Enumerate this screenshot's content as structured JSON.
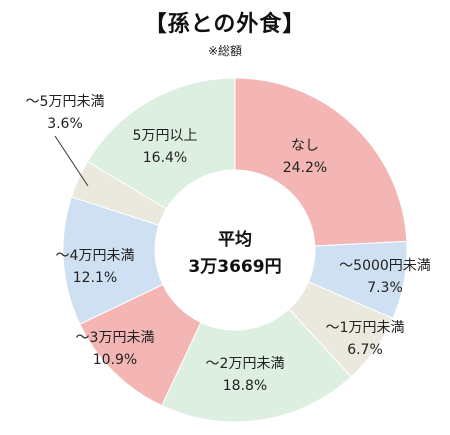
{
  "title": "【孫との外食】",
  "subtitle": "※総額",
  "center": {
    "line1": "平均",
    "line2": "3万3669円"
  },
  "chart_data": {
    "type": "pie",
    "title": "【孫との外食】",
    "subtitle": "※総額",
    "slices": [
      {
        "label": "なし",
        "value": 24.2,
        "display": "24.2%",
        "color": "#f4b6b5"
      },
      {
        "label": "～5000円未満",
        "value": 7.3,
        "display": "7.3%",
        "color": "#cfe0f2"
      },
      {
        "label": "～1万円未満",
        "value": 6.7,
        "display": "6.7%",
        "color": "#ebe8dd"
      },
      {
        "label": "～2万円未満",
        "value": 18.8,
        "display": "18.8%",
        "color": "#dcefe1"
      },
      {
        "label": "～3万円未満",
        "value": 10.9,
        "display": "10.9%",
        "color": "#f4b6b5"
      },
      {
        "label": "～4万円未満",
        "value": 12.1,
        "display": "12.1%",
        "color": "#cfe0f2"
      },
      {
        "label": "～5万円未満",
        "value": 3.6,
        "display": "3.6%",
        "color": "#ebe8dd"
      },
      {
        "label": "5万円以上",
        "value": 16.4,
        "display": "16.4%",
        "color": "#dcefe1"
      }
    ]
  }
}
